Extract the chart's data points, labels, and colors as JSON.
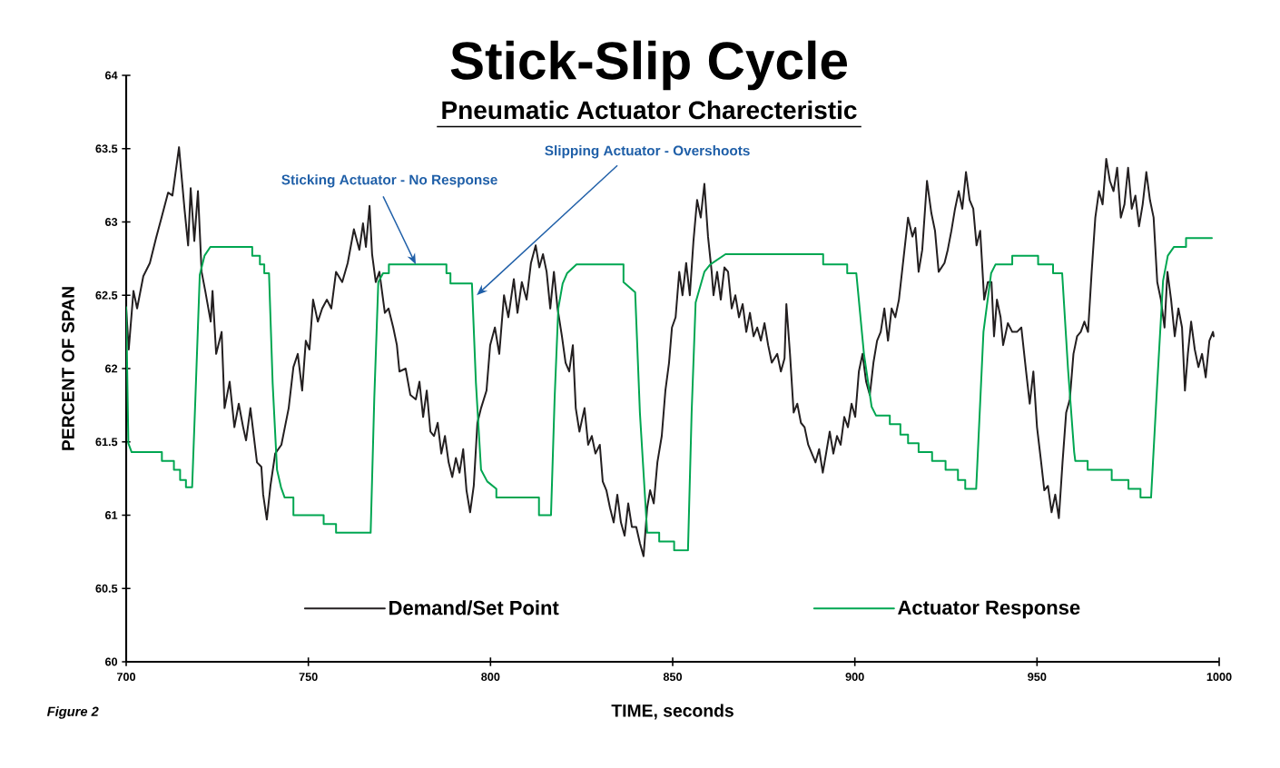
{
  "chart_data": {
    "type": "line",
    "title": "Stick-Slip Cycle",
    "subtitle": "Pneumatic Actuator Charecteristic",
    "xlabel": "TIME, seconds",
    "ylabel": "PERCENT OF SPAN",
    "xlim": [
      700,
      1000
    ],
    "xticks": [
      700,
      750,
      800,
      850,
      900,
      950,
      1000
    ],
    "ylim": [
      60,
      64
    ],
    "yticks": [
      60,
      60.5,
      61,
      61.5,
      62,
      62.5,
      63,
      63.5,
      64
    ],
    "legend": "bottom",
    "annotations": [
      {
        "text": "Sticking Actuator - No Response",
        "x": 779.5,
        "y": 62.71
      },
      {
        "text": "Slipping Actuator - Overshoots",
        "x": 796.2,
        "y": 62.5
      },
      "Figure 2"
    ],
    "series": [
      {
        "name": "Demand/Set Point",
        "color": "#231f20",
        "x": [
          700,
          700.7,
          702,
          703,
          704.7,
          706.5,
          708.2,
          709.7,
          711.5,
          712.7,
          714.5,
          716,
          717,
          717.7,
          718.7,
          719.7,
          720.7,
          721.7,
          723.2,
          723.7,
          724.7,
          726.2,
          727,
          728.4,
          729.7,
          730.9,
          732.1,
          732.9,
          734.1,
          735.9,
          737.1,
          737.6,
          738.6,
          739.6,
          740.9,
          742.6,
          744.6,
          745.9,
          747.1,
          748.3,
          749.3,
          750.3,
          751.3,
          752.6,
          753.8,
          755.1,
          756.3,
          757.6,
          759.3,
          760.8,
          762.5,
          764,
          765,
          765.8,
          766.8,
          767.5,
          768.5,
          769.5,
          771,
          772,
          773.3,
          774.3,
          775,
          776.7,
          778,
          779.5,
          780.5,
          781.5,
          782.5,
          783.5,
          784.5,
          785.5,
          786.5,
          787.5,
          788.5,
          789.5,
          790.5,
          791.5,
          792.5,
          793.4,
          794.4,
          795.4,
          796.4,
          797.4,
          798.9,
          799.9,
          801.2,
          802.4,
          803.7,
          804.9,
          806.4,
          807.4,
          808.6,
          809.9,
          811.1,
          812.4,
          813.4,
          814.4,
          815.4,
          816.4,
          817.4,
          818.4,
          819.6,
          820.6,
          821.6,
          822.6,
          823.4,
          824.4,
          825.8,
          826.8,
          827.8,
          828.8,
          830,
          830.8,
          831.8,
          832.8,
          833.8,
          834.8,
          835.8,
          836.8,
          837.8,
          838.8,
          840,
          841,
          842,
          843,
          843.8,
          844.8,
          845.8,
          847,
          848,
          849,
          849.8,
          850.8,
          851.8,
          852.7,
          853.7,
          854.7,
          855.7,
          856.7,
          857.7,
          858.7,
          859.7,
          860.7,
          861.2,
          862.2,
          863.2,
          864.2,
          865.2,
          866.2,
          867.2,
          868.2,
          869.2,
          870.2,
          871.2,
          872.2,
          873.2,
          874.2,
          875.2,
          876.2,
          877.2,
          878.7,
          879.7,
          880.7,
          881.2,
          882.2,
          883.2,
          884.2,
          885.2,
          886.2,
          887.2,
          888.2,
          889.2,
          890.2,
          891.2,
          892.1,
          893.1,
          894.1,
          895.1,
          896.1,
          897.1,
          898.1,
          899.1,
          900.1,
          901.1,
          902.1,
          903.1,
          904.1,
          905.1,
          906.1,
          907.1,
          908.1,
          909.1,
          910.1,
          911.1,
          912.1,
          914.6,
          915.8,
          916.6,
          917.5,
          918.5,
          919.8,
          921,
          922,
          923,
          924.6,
          925.5,
          926.5,
          927.5,
          928.5,
          929.5,
          930.5,
          931.5,
          932.5,
          933.4,
          934.4,
          935.5,
          936.5,
          937.5,
          938.2,
          939,
          940,
          940.7,
          942,
          943.2,
          944.5,
          945.7,
          947,
          948,
          949,
          950,
          951,
          952,
          953,
          954,
          955,
          956,
          957,
          958,
          959,
          960,
          961,
          962,
          963,
          964,
          965,
          966,
          967,
          968,
          969,
          970,
          971,
          972,
          973,
          974,
          975,
          976,
          977,
          978,
          979,
          980,
          981,
          982,
          983,
          984,
          985,
          985.8,
          986.8,
          987.8,
          988.8,
          989.8,
          990.6,
          991.4,
          992.3,
          993.3,
          994.3,
          995.3,
          996.3,
          997.3,
          998.3,
          998.5
        ],
        "values": [
          62.41,
          62.13,
          62.53,
          62.41,
          62.63,
          62.72,
          62.89,
          63.03,
          63.2,
          63.18,
          63.51,
          63.09,
          62.84,
          63.23,
          62.87,
          63.21,
          62.66,
          62.53,
          62.32,
          62.53,
          62.1,
          62.25,
          61.73,
          61.91,
          61.6,
          61.76,
          61.6,
          61.51,
          61.73,
          61.36,
          61.33,
          61.14,
          60.97,
          61.2,
          61.42,
          61.48,
          61.73,
          62.01,
          62.1,
          61.85,
          62.19,
          62.13,
          62.47,
          62.32,
          62.41,
          62.47,
          62.41,
          62.66,
          62.59,
          62.72,
          62.95,
          62.81,
          62.99,
          62.83,
          63.11,
          62.78,
          62.59,
          62.66,
          62.38,
          62.41,
          62.28,
          62.16,
          61.98,
          62.0,
          61.82,
          61.79,
          61.91,
          61.67,
          61.85,
          61.57,
          61.54,
          61.63,
          61.42,
          61.54,
          61.36,
          61.26,
          61.39,
          61.29,
          61.45,
          61.17,
          61.02,
          61.2,
          61.63,
          61.73,
          61.85,
          62.16,
          62.28,
          62.1,
          62.5,
          62.35,
          62.61,
          62.38,
          62.59,
          62.47,
          62.72,
          62.84,
          62.69,
          62.78,
          62.66,
          62.41,
          62.66,
          62.41,
          62.22,
          62.04,
          61.98,
          62.16,
          61.73,
          61.57,
          61.73,
          61.48,
          61.54,
          61.42,
          61.48,
          61.23,
          61.17,
          61.05,
          60.95,
          61.14,
          60.95,
          60.86,
          61.08,
          60.92,
          60.92,
          60.81,
          60.72,
          61.05,
          61.17,
          61.08,
          61.36,
          61.54,
          61.85,
          62.04,
          62.28,
          62.35,
          62.66,
          62.5,
          62.72,
          62.5,
          62.87,
          63.15,
          63.03,
          63.26,
          62.9,
          62.66,
          62.5,
          62.66,
          62.47,
          62.69,
          62.66,
          62.41,
          62.5,
          62.35,
          62.44,
          62.25,
          62.38,
          62.22,
          62.28,
          62.19,
          62.31,
          62.16,
          62.04,
          62.1,
          61.98,
          62.07,
          62.44,
          62.1,
          61.7,
          61.76,
          61.63,
          61.6,
          61.48,
          61.42,
          61.36,
          61.45,
          61.29,
          61.42,
          61.57,
          61.42,
          61.54,
          61.48,
          61.67,
          61.6,
          61.76,
          61.67,
          61.98,
          62.1,
          61.91,
          61.82,
          62.04,
          62.19,
          62.25,
          62.41,
          62.19,
          62.41,
          62.35,
          62.47,
          63.03,
          62.9,
          62.96,
          62.66,
          62.81,
          63.28,
          63.06,
          62.94,
          62.66,
          62.72,
          62.81,
          62.94,
          63.09,
          63.21,
          63.09,
          63.34,
          63.15,
          63.09,
          62.84,
          62.94,
          62.47,
          62.59,
          62.59,
          62.22,
          62.47,
          62.35,
          62.16,
          62.31,
          62.25,
          62.25,
          62.28,
          61.98,
          61.76,
          61.98,
          61.6,
          61.39,
          61.17,
          61.2,
          61.02,
          61.14,
          60.98,
          61.36,
          61.7,
          61.79,
          62.1,
          62.22,
          62.25,
          62.32,
          62.25,
          62.66,
          63.03,
          63.21,
          63.12,
          63.43,
          63.28,
          63.21,
          63.37,
          63.03,
          63.12,
          63.37,
          63.09,
          63.18,
          62.97,
          63.12,
          63.34,
          63.15,
          63.03,
          62.59,
          62.47,
          62.28,
          62.66,
          62.47,
          62.22,
          62.41,
          62.28,
          61.85,
          62.1,
          62.32,
          62.13,
          62.01,
          62.1,
          61.94,
          62.19,
          62.25,
          62.22
        ]
      },
      {
        "name": "Actuator Response",
        "color": "#00a651",
        "x": [
          700,
          700.6,
          701.5,
          709.8,
          709.8,
          713.1,
          713.1,
          714.8,
          714.8,
          716.4,
          716.4,
          718.1,
          719,
          720.2,
          721.5,
          723.1,
          734.6,
          734.6,
          736.7,
          736.7,
          737.9,
          737.9,
          739.2,
          740.2,
          741.4,
          742.5,
          743.5,
          745.9,
          745.9,
          754.2,
          754.2,
          757.6,
          757.6,
          767.1,
          768.1,
          769.2,
          770.5,
          772.1,
          772.1,
          787.9,
          787.9,
          789,
          789,
          794.9,
          796,
          797.4,
          799.1,
          801.6,
          801.6,
          813.3,
          813.3,
          816.6,
          817.6,
          818.6,
          819.8,
          821,
          823.6,
          836.5,
          836.5,
          839.7,
          841,
          843,
          846.3,
          846.3,
          850.4,
          850.4,
          854.2,
          855.2,
          856.3,
          858.7,
          860.3,
          864.5,
          891.3,
          891.3,
          897.9,
          897.9,
          900.4,
          902.5,
          904.6,
          905.8,
          909.6,
          909.6,
          912.5,
          912.5,
          914.6,
          914.6,
          917.5,
          917.5,
          921.2,
          921.2,
          924.9,
          924.9,
          928.3,
          928.3,
          930.3,
          930.3,
          933.3,
          935.3,
          937.4,
          938.6,
          943.2,
          943.2,
          950.3,
          950.3,
          954.4,
          954.4,
          956.9,
          958.5,
          960.2,
          960.5,
          963.9,
          963.9,
          970.5,
          970.5,
          975.1,
          975.1,
          978.4,
          978.4,
          981.3,
          983,
          984.6,
          985.9,
          987.6,
          990.9,
          990.9,
          998
        ],
        "values": [
          62.42,
          61.49,
          61.43,
          61.43,
          61.37,
          61.37,
          61.31,
          61.31,
          61.24,
          61.24,
          61.19,
          61.19,
          61.8,
          62.64,
          62.77,
          62.83,
          62.83,
          62.77,
          62.77,
          62.71,
          62.71,
          62.65,
          62.65,
          61.9,
          61.31,
          61.19,
          61.12,
          61.12,
          61.0,
          61.0,
          60.94,
          60.94,
          60.88,
          60.88,
          61.8,
          62.59,
          62.65,
          62.65,
          62.71,
          62.71,
          62.65,
          62.65,
          62.58,
          62.58,
          61.9,
          61.31,
          61.23,
          61.18,
          61.12,
          61.12,
          61.0,
          61.0,
          61.8,
          62.41,
          62.58,
          62.65,
          62.71,
          62.71,
          62.59,
          62.52,
          61.7,
          60.88,
          60.88,
          60.82,
          60.82,
          60.76,
          60.76,
          61.7,
          62.45,
          62.66,
          62.71,
          62.78,
          62.78,
          62.71,
          62.71,
          62.65,
          62.65,
          62.1,
          61.74,
          61.68,
          61.68,
          61.62,
          61.62,
          61.55,
          61.55,
          61.49,
          61.49,
          61.43,
          61.43,
          61.37,
          61.37,
          61.31,
          61.31,
          61.24,
          61.24,
          61.18,
          61.18,
          62.25,
          62.65,
          62.71,
          62.71,
          62.77,
          62.77,
          62.71,
          62.71,
          62.65,
          62.65,
          62.0,
          61.43,
          61.37,
          61.37,
          61.31,
          61.31,
          61.24,
          61.24,
          61.18,
          61.18,
          61.12,
          61.12,
          61.9,
          62.6,
          62.77,
          62.83,
          62.83,
          62.89,
          62.89
        ]
      }
    ]
  }
}
